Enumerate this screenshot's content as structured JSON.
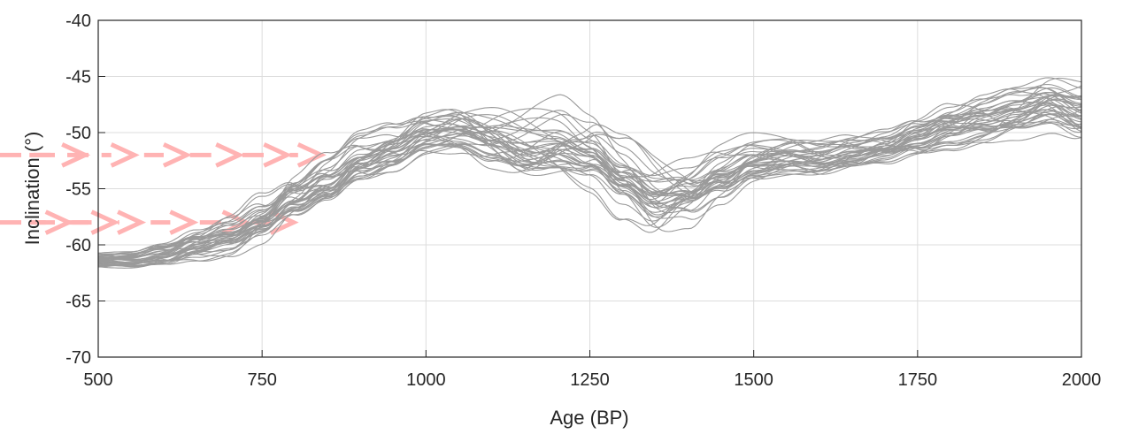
{
  "chart_data": {
    "type": "line",
    "title": "",
    "xlabel": "Age (BP)",
    "ylabel": "Inclination (°)",
    "xlim": [
      500,
      2000
    ],
    "ylim": [
      -70,
      -40
    ],
    "xticks": [
      500,
      750,
      1000,
      1250,
      1500,
      1750,
      2000
    ],
    "yticks": [
      -40,
      -45,
      -50,
      -55,
      -60,
      -65,
      -70
    ],
    "xtick_labels": [
      "500",
      "750",
      "1000",
      "1250",
      "1500",
      "1750",
      "2000"
    ],
    "ytick_labels": [
      "-40",
      "-45",
      "-50",
      "-55",
      "-60",
      "-65",
      "-70"
    ],
    "grid": true,
    "line_color": "#9a9a9a",
    "overlay_arrow_color": "#ffb3b3",
    "ensemble_size": 40,
    "mean_curve": {
      "x": [
        500,
        550,
        600,
        650,
        700,
        750,
        800,
        850,
        900,
        950,
        1000,
        1050,
        1100,
        1150,
        1200,
        1250,
        1300,
        1350,
        1400,
        1450,
        1500,
        1550,
        1600,
        1650,
        1700,
        1750,
        1800,
        1850,
        1900,
        1950,
        2000
      ],
      "y": [
        -61.3,
        -61.3,
        -60.8,
        -59.9,
        -59.2,
        -57.8,
        -55.8,
        -54.3,
        -52.4,
        -51.6,
        -50.4,
        -50.2,
        -50.8,
        -51.2,
        -51.0,
        -52.0,
        -54.2,
        -55.8,
        -55.0,
        -53.5,
        -52.4,
        -52.2,
        -52.5,
        -52.0,
        -51.5,
        -50.5,
        -49.5,
        -48.8,
        -48.2,
        -47.6,
        -48.5
      ]
    },
    "spread": {
      "x": [
        500,
        550,
        600,
        650,
        700,
        750,
        800,
        850,
        900,
        950,
        1000,
        1050,
        1100,
        1150,
        1200,
        1250,
        1300,
        1350,
        1400,
        1450,
        1500,
        1550,
        1600,
        1650,
        1700,
        1750,
        1800,
        1850,
        1900,
        1950,
        2000
      ],
      "y": [
        0.6,
        0.6,
        0.8,
        1.0,
        1.2,
        1.5,
        1.6,
        1.6,
        1.5,
        1.5,
        1.5,
        1.8,
        2.2,
        2.4,
        2.3,
        2.0,
        2.2,
        2.6,
        2.2,
        1.8,
        1.4,
        1.3,
        1.3,
        1.3,
        1.3,
        1.4,
        1.5,
        1.6,
        1.7,
        1.8,
        2.0
      ]
    },
    "overlay_arrows": [
      {
        "y": -52,
        "segments": [
          [
            395,
            480
          ],
          [
            505,
            555
          ],
          [
            570,
            635
          ],
          [
            640,
            715
          ],
          [
            720,
            788
          ],
          [
            792,
            840
          ]
        ]
      },
      {
        "y": -58,
        "segments": [
          [
            395,
            455
          ],
          [
            460,
            525
          ],
          [
            532,
            565
          ],
          [
            580,
            645
          ],
          [
            655,
            725
          ],
          [
            735,
            798
          ]
        ]
      }
    ]
  }
}
